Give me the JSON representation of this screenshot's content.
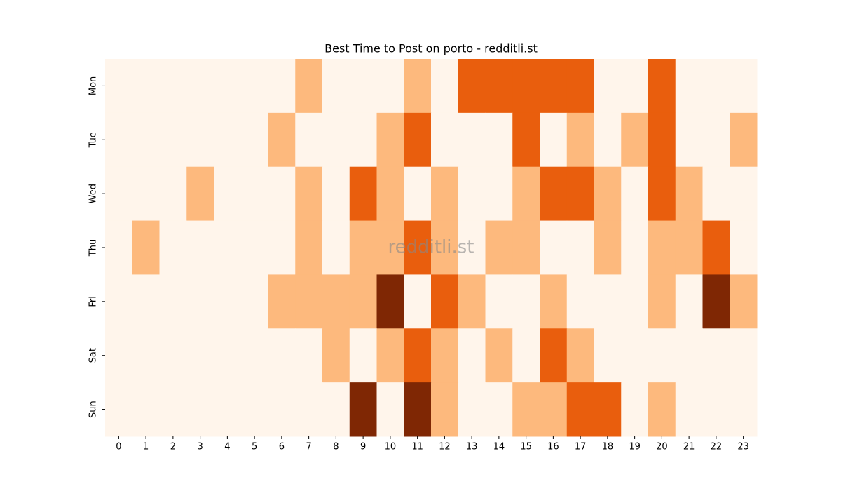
{
  "chart_data": {
    "type": "heatmap",
    "title": "Best Time to Post on porto - redditli.st",
    "watermark": "redditli.st",
    "x_categories": [
      "0",
      "1",
      "2",
      "3",
      "4",
      "5",
      "6",
      "7",
      "8",
      "9",
      "10",
      "11",
      "12",
      "13",
      "14",
      "15",
      "16",
      "17",
      "18",
      "19",
      "20",
      "21",
      "22",
      "23"
    ],
    "y_categories": [
      "Mon",
      "Tue",
      "Wed",
      "Thu",
      "Fri",
      "Sat",
      "Sun"
    ],
    "values": [
      [
        0,
        0,
        0,
        0,
        0,
        0,
        0,
        1,
        0,
        0,
        0,
        1,
        0,
        2,
        2,
        2,
        2,
        2,
        0,
        0,
        2,
        0,
        0,
        0
      ],
      [
        0,
        0,
        0,
        0,
        0,
        0,
        1,
        0,
        0,
        0,
        1,
        2,
        0,
        0,
        0,
        2,
        0,
        1,
        0,
        1,
        2,
        0,
        0,
        1
      ],
      [
        0,
        0,
        0,
        1,
        0,
        0,
        0,
        1,
        0,
        2,
        1,
        0,
        1,
        0,
        0,
        1,
        2,
        2,
        1,
        0,
        2,
        1,
        0,
        0
      ],
      [
        0,
        1,
        0,
        0,
        0,
        0,
        0,
        1,
        0,
        1,
        1,
        2,
        1,
        0,
        1,
        1,
        0,
        0,
        1,
        0,
        1,
        1,
        2,
        0
      ],
      [
        0,
        0,
        0,
        0,
        0,
        0,
        1,
        1,
        1,
        1,
        3,
        0,
        2,
        1,
        0,
        0,
        1,
        0,
        0,
        0,
        1,
        0,
        3,
        1
      ],
      [
        0,
        0,
        0,
        0,
        0,
        0,
        0,
        0,
        1,
        0,
        1,
        2,
        1,
        0,
        1,
        0,
        2,
        1,
        0,
        0,
        0,
        0,
        0,
        0
      ],
      [
        0,
        0,
        0,
        0,
        0,
        0,
        0,
        0,
        0,
        3,
        0,
        3,
        1,
        0,
        0,
        1,
        1,
        2,
        2,
        0,
        1,
        0,
        0,
        0
      ]
    ],
    "colors": [
      "#fff5eb",
      "#fdb97d",
      "#e95e0d",
      "#7f2704"
    ]
  }
}
